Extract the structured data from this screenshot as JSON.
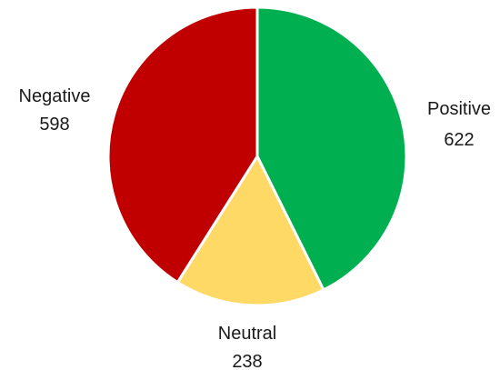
{
  "chart_data": {
    "type": "pie",
    "title": "",
    "start_angle_deg": 0,
    "direction": "clockwise",
    "legend": "none",
    "data_labels": "outside, category name and value",
    "slices": [
      {
        "label": "Positive",
        "value": 622,
        "color": "#00B050"
      },
      {
        "label": "Neutral",
        "value": 238,
        "color": "#FFD966"
      },
      {
        "label": "Negative",
        "value": 598,
        "color": "#C00000"
      }
    ]
  }
}
